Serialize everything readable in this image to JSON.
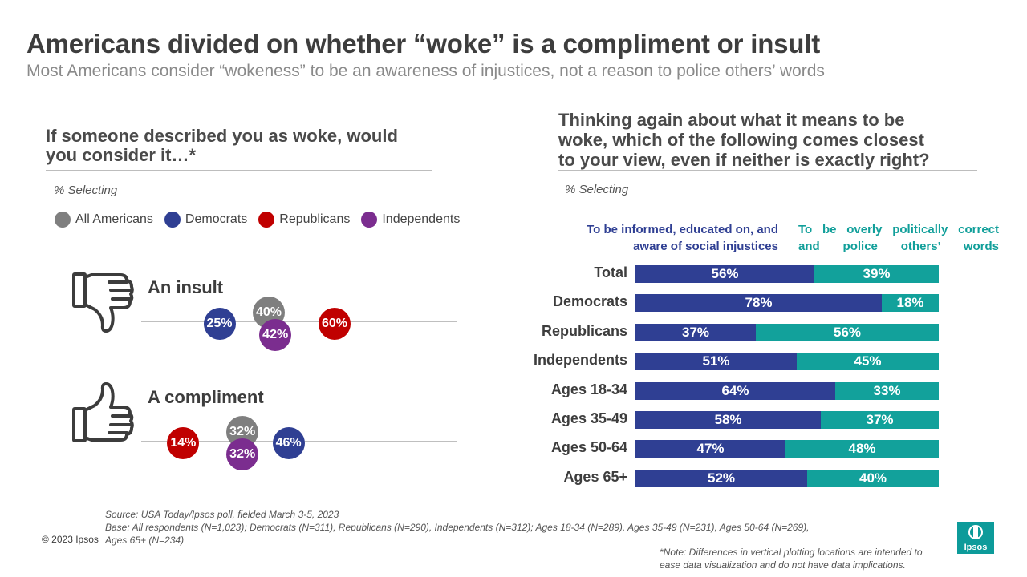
{
  "header": {
    "title": "Americans divided on whether “woke” is a compliment or insult",
    "subtitle": "Most Americans consider “wokeness” to be an awareness of injustices, not a reason to police others’ words"
  },
  "left_panel": {
    "question_line1": "If someone described you as woke, would",
    "question_line2": "you consider it…*",
    "selecting": "% Selecting"
  },
  "right_panel": {
    "question_line1": "Thinking again about what it means to be",
    "question_line2": "woke, which of the following comes closest",
    "question_line3": "to your view, even if neither is exactly right?",
    "selecting": "% Selecting"
  },
  "colors": {
    "all": "#7f7f7f",
    "democrats": "#2f3f93",
    "republicans": "#c00000",
    "independents": "#7b2d8f",
    "informed": "#2f3f93",
    "correct": "#12a19b"
  },
  "icons": {
    "insult": "thumbs-down-icon",
    "compliment": "thumbs-up-icon",
    "logo": "ipsos-logo"
  },
  "chart_data": [
    {
      "type": "scatter",
      "legend_position": "top",
      "legend": [
        "All Americans",
        "Democrats",
        "Republicans",
        "Independents"
      ],
      "categories": [
        "An insult",
        "A compliment"
      ],
      "series": [
        {
          "name": "All Americans",
          "values": [
            40,
            32
          ],
          "labels": [
            "40%",
            "32%"
          ]
        },
        {
          "name": "Democrats",
          "values": [
            25,
            46
          ],
          "labels": [
            "25%",
            "46%"
          ]
        },
        {
          "name": "Republicans",
          "values": [
            60,
            14
          ],
          "labels": [
            "60%",
            "14%"
          ]
        },
        {
          "name": "Independents",
          "values": [
            42,
            32
          ],
          "labels": [
            "42%",
            "32%"
          ]
        }
      ]
    },
    {
      "type": "bar",
      "stacked": true,
      "orientation": "horizontal",
      "categories": [
        "Total",
        "Democrats",
        "Republicans",
        "Independents",
        "Ages 18-34",
        "Ages 35-49",
        "Ages 50-64",
        "Ages 65+"
      ],
      "series": [
        {
          "name_line1": "To be informed, educated on, and",
          "name_line2": "aware of social injustices",
          "values": [
            56,
            78,
            37,
            51,
            64,
            58,
            47,
            52
          ],
          "labels": [
            "56%",
            "78%",
            "37%",
            "51%",
            "64%",
            "58%",
            "47%",
            "52%"
          ]
        },
        {
          "name_line1": "To be overly politically correct",
          "name_line2": "and police others’ words",
          "values": [
            39,
            18,
            56,
            45,
            33,
            37,
            48,
            40
          ],
          "labels": [
            "39%",
            "18%",
            "56%",
            "45%",
            "33%",
            "37%",
            "48%",
            "40%"
          ]
        }
      ]
    }
  ],
  "footer": {
    "source": "Source: USA Today/Ipsos poll, fielded March 3-5, 2023",
    "base_line1": "Base: All respondents (N=1,023); Democrats (N=311), Republicans (N=290), Independents (N=312); Ages 18-34 (N=289), Ages 35-49 (N=231), Ages 50-64 (N=269),",
    "base_line2": "Ages 65+ (N=234)",
    "copyright": "© 2023 Ipsos",
    "note_line1": "*Note: Differences in vertical plotting locations are intended to",
    "note_line2": "ease data visualization and do not have data implications.",
    "logo_text": "Ipsos"
  }
}
